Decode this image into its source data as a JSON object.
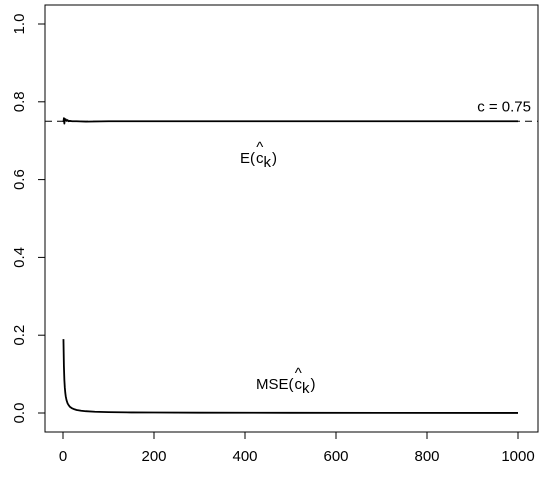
{
  "chart_data": {
    "type": "line",
    "title": "",
    "xlabel": "",
    "ylabel": "",
    "xlim": [
      0,
      1000
    ],
    "ylim": [
      0,
      1.0
    ],
    "x_ticks": [
      0,
      200,
      400,
      600,
      800,
      1000
    ],
    "y_ticks": [
      0.0,
      0.2,
      0.4,
      0.6,
      0.8,
      1.0
    ],
    "x_tick_labels": [
      "0",
      "200",
      "400",
      "600",
      "800",
      "1000"
    ],
    "y_tick_labels": [
      "0.0",
      "0.2",
      "0.4",
      "0.6",
      "0.8",
      "1.0"
    ],
    "grid": false,
    "series": [
      {
        "label_main": "E(",
        "label_hat": "^",
        "label_c": "c",
        "label_sub": "k",
        "label_close": ")",
        "color": "#000000",
        "x": [
          1,
          2,
          3,
          4,
          5,
          6,
          8,
          10,
          12,
          15,
          20,
          30,
          50,
          100,
          200,
          400,
          600,
          800,
          1000
        ],
        "y": [
          0.748,
          0.758,
          0.744,
          0.756,
          0.752,
          0.755,
          0.751,
          0.753,
          0.75,
          0.751,
          0.75,
          0.75,
          0.749,
          0.75,
          0.75,
          0.75,
          0.75,
          0.75,
          0.75
        ]
      },
      {
        "label_main": "MSE(",
        "label_hat": "^",
        "label_c": "c",
        "label_sub": "k",
        "label_close": ")",
        "color": "#000000",
        "x": [
          1,
          2,
          3,
          4,
          5,
          6,
          7,
          8,
          10,
          12,
          15,
          20,
          25,
          30,
          40,
          50,
          70,
          100,
          150,
          200,
          300,
          500,
          700,
          1000
        ],
        "y": [
          0.19,
          0.12,
          0.085,
          0.065,
          0.052,
          0.043,
          0.037,
          0.032,
          0.025,
          0.021,
          0.016,
          0.012,
          0.0095,
          0.0078,
          0.0058,
          0.0046,
          0.0033,
          0.0023,
          0.0015,
          0.0012,
          0.0008,
          0.0005,
          0.0003,
          0.0002
        ]
      }
    ],
    "reference_line": {
      "y": 0.75,
      "label": "c = 0.75",
      "style": "dashed"
    }
  }
}
